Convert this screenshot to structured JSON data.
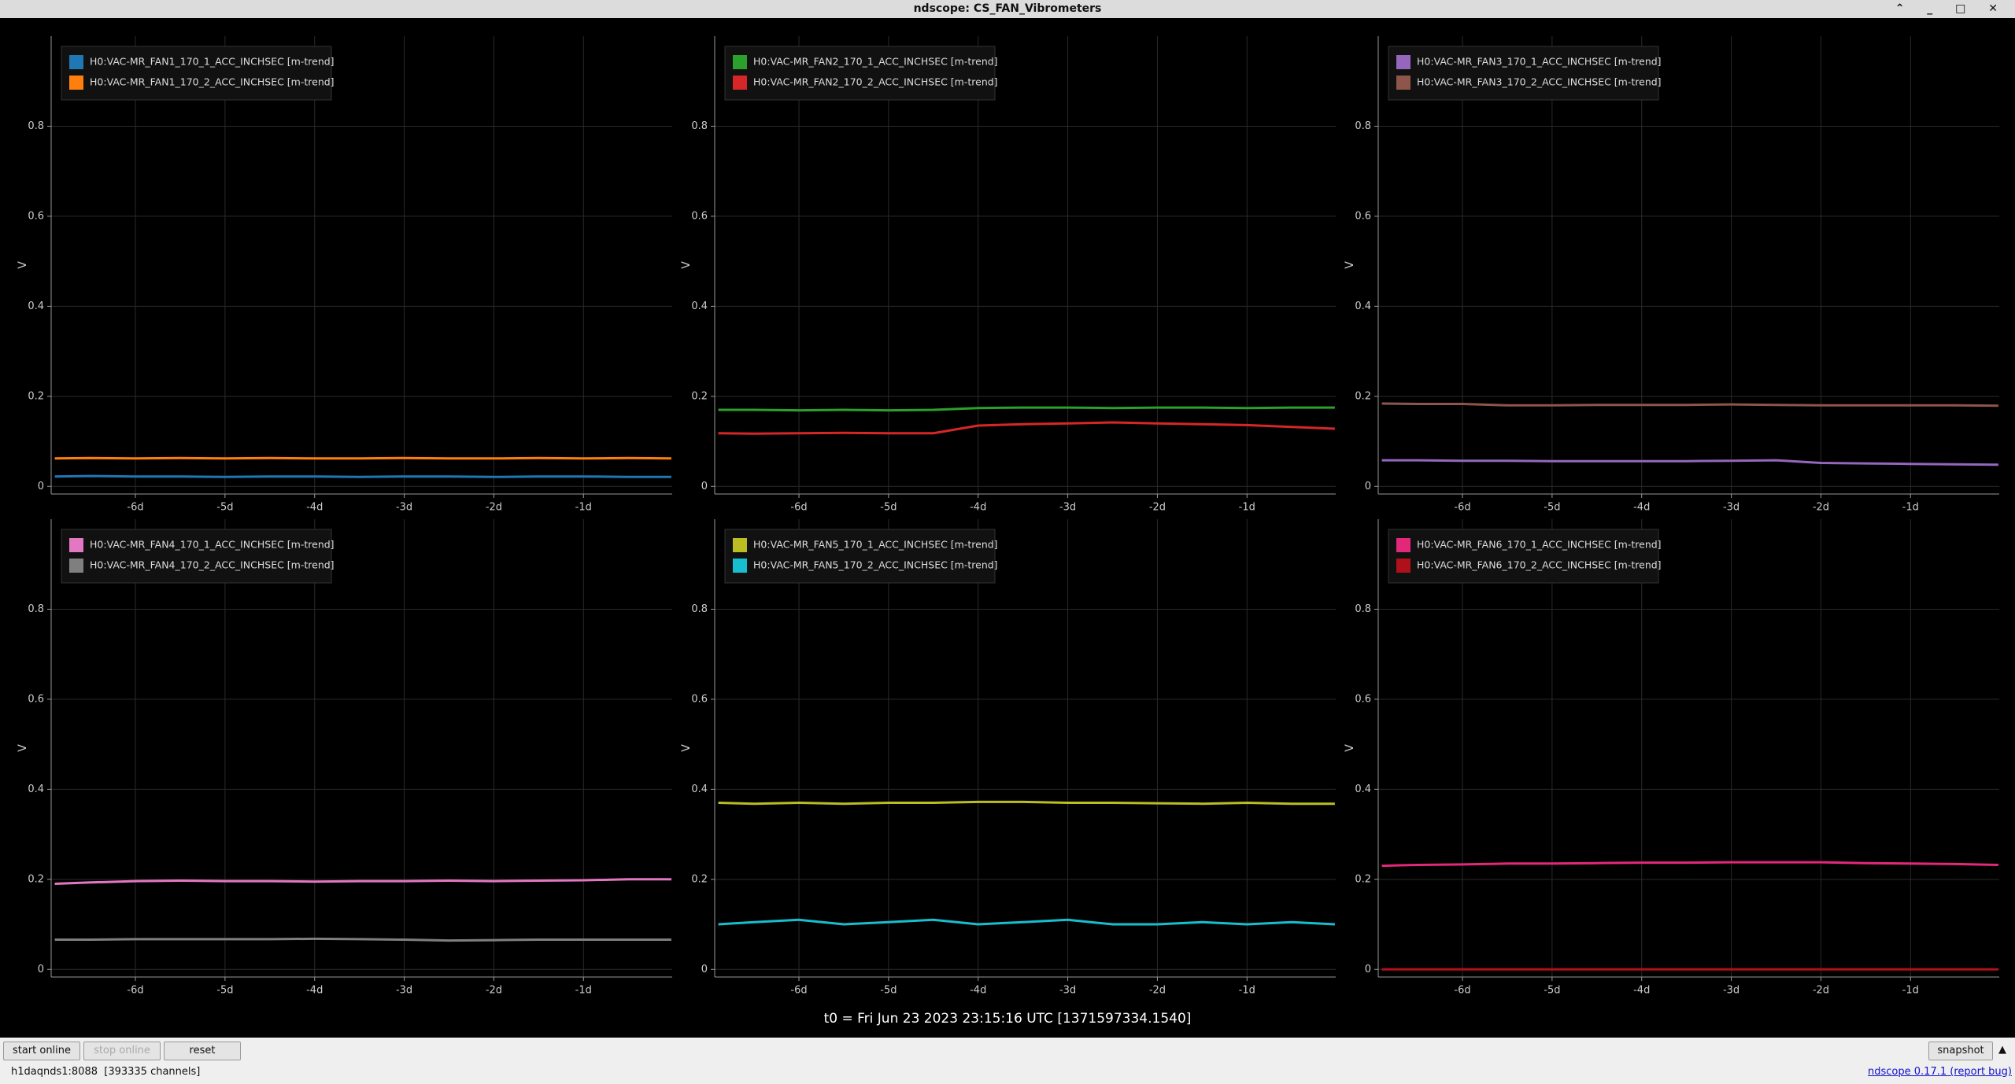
{
  "window": {
    "title": "ndscope: CS_FAN_Vibrometers"
  },
  "chart_data": [
    {
      "type": "line",
      "y_label": "V",
      "grid": true,
      "legend": "upper left",
      "x": [
        -6.9,
        -6.5,
        -6,
        -5.5,
        -5,
        -4.5,
        -4,
        -3.5,
        -3,
        -2.5,
        -2,
        -1.5,
        -1,
        -0.5,
        -0.02
      ],
      "xlim": [
        -6.94,
        -0.01
      ],
      "ylim": [
        -0.017,
        1.0
      ],
      "xticks": [
        {
          "value": -6,
          "label": "-6d"
        },
        {
          "value": -5,
          "label": "-5d"
        },
        {
          "value": -4,
          "label": "-4d"
        },
        {
          "value": -3,
          "label": "-3d"
        },
        {
          "value": -2,
          "label": "-2d"
        },
        {
          "value": -1,
          "label": "-1d"
        }
      ],
      "yticks": [
        0,
        0.2,
        0.4,
        0.6,
        0.8
      ],
      "series": [
        {
          "name": "H0:VAC-MR_FAN1_170_1_ACC_INCHSEC [m-trend]",
          "color": "#1f77b4",
          "values": [
            0.022,
            0.023,
            0.022,
            0.022,
            0.021,
            0.022,
            0.022,
            0.021,
            0.022,
            0.022,
            0.021,
            0.022,
            0.022,
            0.021,
            0.021
          ]
        },
        {
          "name": "H0:VAC-MR_FAN1_170_2_ACC_INCHSEC [m-trend]",
          "color": "#ff7f0e",
          "values": [
            0.062,
            0.063,
            0.062,
            0.063,
            0.062,
            0.063,
            0.062,
            0.062,
            0.063,
            0.062,
            0.062,
            0.063,
            0.062,
            0.063,
            0.062
          ]
        }
      ]
    },
    {
      "type": "line",
      "y_label": "V",
      "grid": true,
      "legend": "upper left",
      "x": [
        -6.9,
        -6.5,
        -6,
        -5.5,
        -5,
        -4.5,
        -4,
        -3.5,
        -3,
        -2.5,
        -2,
        -1.5,
        -1,
        -0.5,
        -0.02
      ],
      "xlim": [
        -6.94,
        -0.01
      ],
      "ylim": [
        -0.017,
        1.0
      ],
      "xticks": [
        {
          "value": -6,
          "label": "-6d"
        },
        {
          "value": -5,
          "label": "-5d"
        },
        {
          "value": -4,
          "label": "-4d"
        },
        {
          "value": -3,
          "label": "-3d"
        },
        {
          "value": -2,
          "label": "-2d"
        },
        {
          "value": -1,
          "label": "-1d"
        }
      ],
      "yticks": [
        0,
        0.2,
        0.4,
        0.6,
        0.8
      ],
      "series": [
        {
          "name": "H0:VAC-MR_FAN2_170_1_ACC_INCHSEC [m-trend]",
          "color": "#2ca02c",
          "values": [
            0.17,
            0.17,
            0.169,
            0.17,
            0.169,
            0.17,
            0.174,
            0.175,
            0.175,
            0.174,
            0.175,
            0.175,
            0.174,
            0.175,
            0.175
          ]
        },
        {
          "name": "H0:VAC-MR_FAN2_170_2_ACC_INCHSEC [m-trend]",
          "color": "#d62728",
          "values": [
            0.118,
            0.117,
            0.118,
            0.119,
            0.118,
            0.118,
            0.135,
            0.138,
            0.14,
            0.142,
            0.14,
            0.138,
            0.136,
            0.132,
            0.128
          ]
        }
      ]
    },
    {
      "type": "line",
      "y_label": "V",
      "grid": true,
      "legend": "upper left",
      "x": [
        -6.9,
        -6.5,
        -6,
        -5.5,
        -5,
        -4.5,
        -4,
        -3.5,
        -3,
        -2.5,
        -2,
        -1.5,
        -1,
        -0.5,
        -0.02
      ],
      "xlim": [
        -6.94,
        -0.01
      ],
      "ylim": [
        -0.017,
        1.0
      ],
      "xticks": [
        {
          "value": -6,
          "label": "-6d"
        },
        {
          "value": -5,
          "label": "-5d"
        },
        {
          "value": -4,
          "label": "-4d"
        },
        {
          "value": -3,
          "label": "-3d"
        },
        {
          "value": -2,
          "label": "-2d"
        },
        {
          "value": -1,
          "label": "-1d"
        }
      ],
      "yticks": [
        0,
        0.2,
        0.4,
        0.6,
        0.8
      ],
      "series": [
        {
          "name": "H0:VAC-MR_FAN3_170_1_ACC_INCHSEC [m-trend]",
          "color": "#9467bd",
          "values": [
            0.058,
            0.058,
            0.057,
            0.057,
            0.056,
            0.056,
            0.056,
            0.056,
            0.057,
            0.058,
            0.052,
            0.051,
            0.05,
            0.049,
            0.048
          ]
        },
        {
          "name": "H0:VAC-MR_FAN3_170_2_ACC_INCHSEC [m-trend]",
          "color": "#8c564b",
          "values": [
            0.184,
            0.183,
            0.183,
            0.18,
            0.18,
            0.181,
            0.181,
            0.181,
            0.182,
            0.181,
            0.18,
            0.18,
            0.18,
            0.18,
            0.179
          ]
        }
      ]
    },
    {
      "type": "line",
      "y_label": "V",
      "grid": true,
      "legend": "upper left",
      "x": [
        -6.9,
        -6.5,
        -6,
        -5.5,
        -5,
        -4.5,
        -4,
        -3.5,
        -3,
        -2.5,
        -2,
        -1.5,
        -1,
        -0.5,
        -0.02
      ],
      "xlim": [
        -6.94,
        -0.01
      ],
      "ylim": [
        -0.017,
        1.0
      ],
      "xticks": [
        {
          "value": -6,
          "label": "-6d"
        },
        {
          "value": -5,
          "label": "-5d"
        },
        {
          "value": -4,
          "label": "-4d"
        },
        {
          "value": -3,
          "label": "-3d"
        },
        {
          "value": -2,
          "label": "-2d"
        },
        {
          "value": -1,
          "label": "-1d"
        }
      ],
      "yticks": [
        0,
        0.2,
        0.4,
        0.6,
        0.8
      ],
      "series": [
        {
          "name": "H0:VAC-MR_FAN4_170_1_ACC_INCHSEC [m-trend]",
          "color": "#e377c2",
          "values": [
            0.19,
            0.193,
            0.196,
            0.197,
            0.196,
            0.196,
            0.195,
            0.196,
            0.196,
            0.197,
            0.196,
            0.197,
            0.198,
            0.2,
            0.2
          ]
        },
        {
          "name": "H0:VAC-MR_FAN4_170_2_ACC_INCHSEC [m-trend]",
          "color": "#7f7f7f",
          "values": [
            0.066,
            0.066,
            0.067,
            0.067,
            0.067,
            0.067,
            0.068,
            0.067,
            0.066,
            0.064,
            0.065,
            0.066,
            0.066,
            0.066,
            0.066
          ]
        }
      ]
    },
    {
      "type": "line",
      "y_label": "V",
      "grid": true,
      "legend": "upper left",
      "x": [
        -6.9,
        -6.5,
        -6,
        -5.5,
        -5,
        -4.5,
        -4,
        -3.5,
        -3,
        -2.5,
        -2,
        -1.5,
        -1,
        -0.5,
        -0.02
      ],
      "xlim": [
        -6.94,
        -0.01
      ],
      "ylim": [
        -0.017,
        1.0
      ],
      "xticks": [
        {
          "value": -6,
          "label": "-6d"
        },
        {
          "value": -5,
          "label": "-5d"
        },
        {
          "value": -4,
          "label": "-4d"
        },
        {
          "value": -3,
          "label": "-3d"
        },
        {
          "value": -2,
          "label": "-2d"
        },
        {
          "value": -1,
          "label": "-1d"
        }
      ],
      "yticks": [
        0,
        0.2,
        0.4,
        0.6,
        0.8
      ],
      "series": [
        {
          "name": "H0:VAC-MR_FAN5_170_1_ACC_INCHSEC [m-trend]",
          "color": "#bcbd22",
          "values": [
            0.37,
            0.368,
            0.37,
            0.368,
            0.37,
            0.37,
            0.372,
            0.372,
            0.37,
            0.37,
            0.369,
            0.368,
            0.37,
            0.368,
            0.368
          ]
        },
        {
          "name": "H0:VAC-MR_FAN5_170_2_ACC_INCHSEC [m-trend]",
          "color": "#17becf",
          "values": [
            0.1,
            0.105,
            0.11,
            0.1,
            0.105,
            0.11,
            0.1,
            0.105,
            0.11,
            0.1,
            0.1,
            0.105,
            0.1,
            0.105,
            0.1
          ]
        }
      ]
    },
    {
      "type": "line",
      "y_label": "V",
      "grid": true,
      "legend": "upper left",
      "x": [
        -6.9,
        -6.5,
        -6,
        -5.5,
        -5,
        -4.5,
        -4,
        -3.5,
        -3,
        -2.5,
        -2,
        -1.5,
        -1,
        -0.5,
        -0.02
      ],
      "xlim": [
        -6.94,
        -0.01
      ],
      "ylim": [
        -0.017,
        1.0
      ],
      "xticks": [
        {
          "value": -6,
          "label": "-6d"
        },
        {
          "value": -5,
          "label": "-5d"
        },
        {
          "value": -4,
          "label": "-4d"
        },
        {
          "value": -3,
          "label": "-3d"
        },
        {
          "value": -2,
          "label": "-2d"
        },
        {
          "value": -1,
          "label": "-1d"
        }
      ],
      "yticks": [
        0,
        0.2,
        0.4,
        0.6,
        0.8
      ],
      "series": [
        {
          "name": "H0:VAC-MR_FAN6_170_1_ACC_INCHSEC [m-trend]",
          "color": "#e3287a",
          "values": [
            0.23,
            0.232,
            0.233,
            0.235,
            0.235,
            0.236,
            0.237,
            0.237,
            0.238,
            0.238,
            0.238,
            0.236,
            0.235,
            0.234,
            0.232
          ]
        },
        {
          "name": "H0:VAC-MR_FAN6_170_2_ACC_INCHSEC [m-trend]",
          "color": "#b0101a",
          "values": [
            0,
            0,
            0,
            0,
            0,
            0,
            0,
            0,
            0,
            0,
            0,
            0,
            0,
            0,
            0
          ]
        }
      ]
    }
  ],
  "t0_label": "t0 = Fri Jun 23 2023 23:15:16 UTC [1371597334.1540]",
  "toolbar": {
    "start": "start online",
    "stop": "stop online",
    "reset": "reset",
    "snapshot": "snapshot"
  },
  "status": {
    "server": "h1daqnds1:8088  [393335 channels]",
    "version": "ndscope 0.17.1",
    "report": "(report bug)"
  }
}
